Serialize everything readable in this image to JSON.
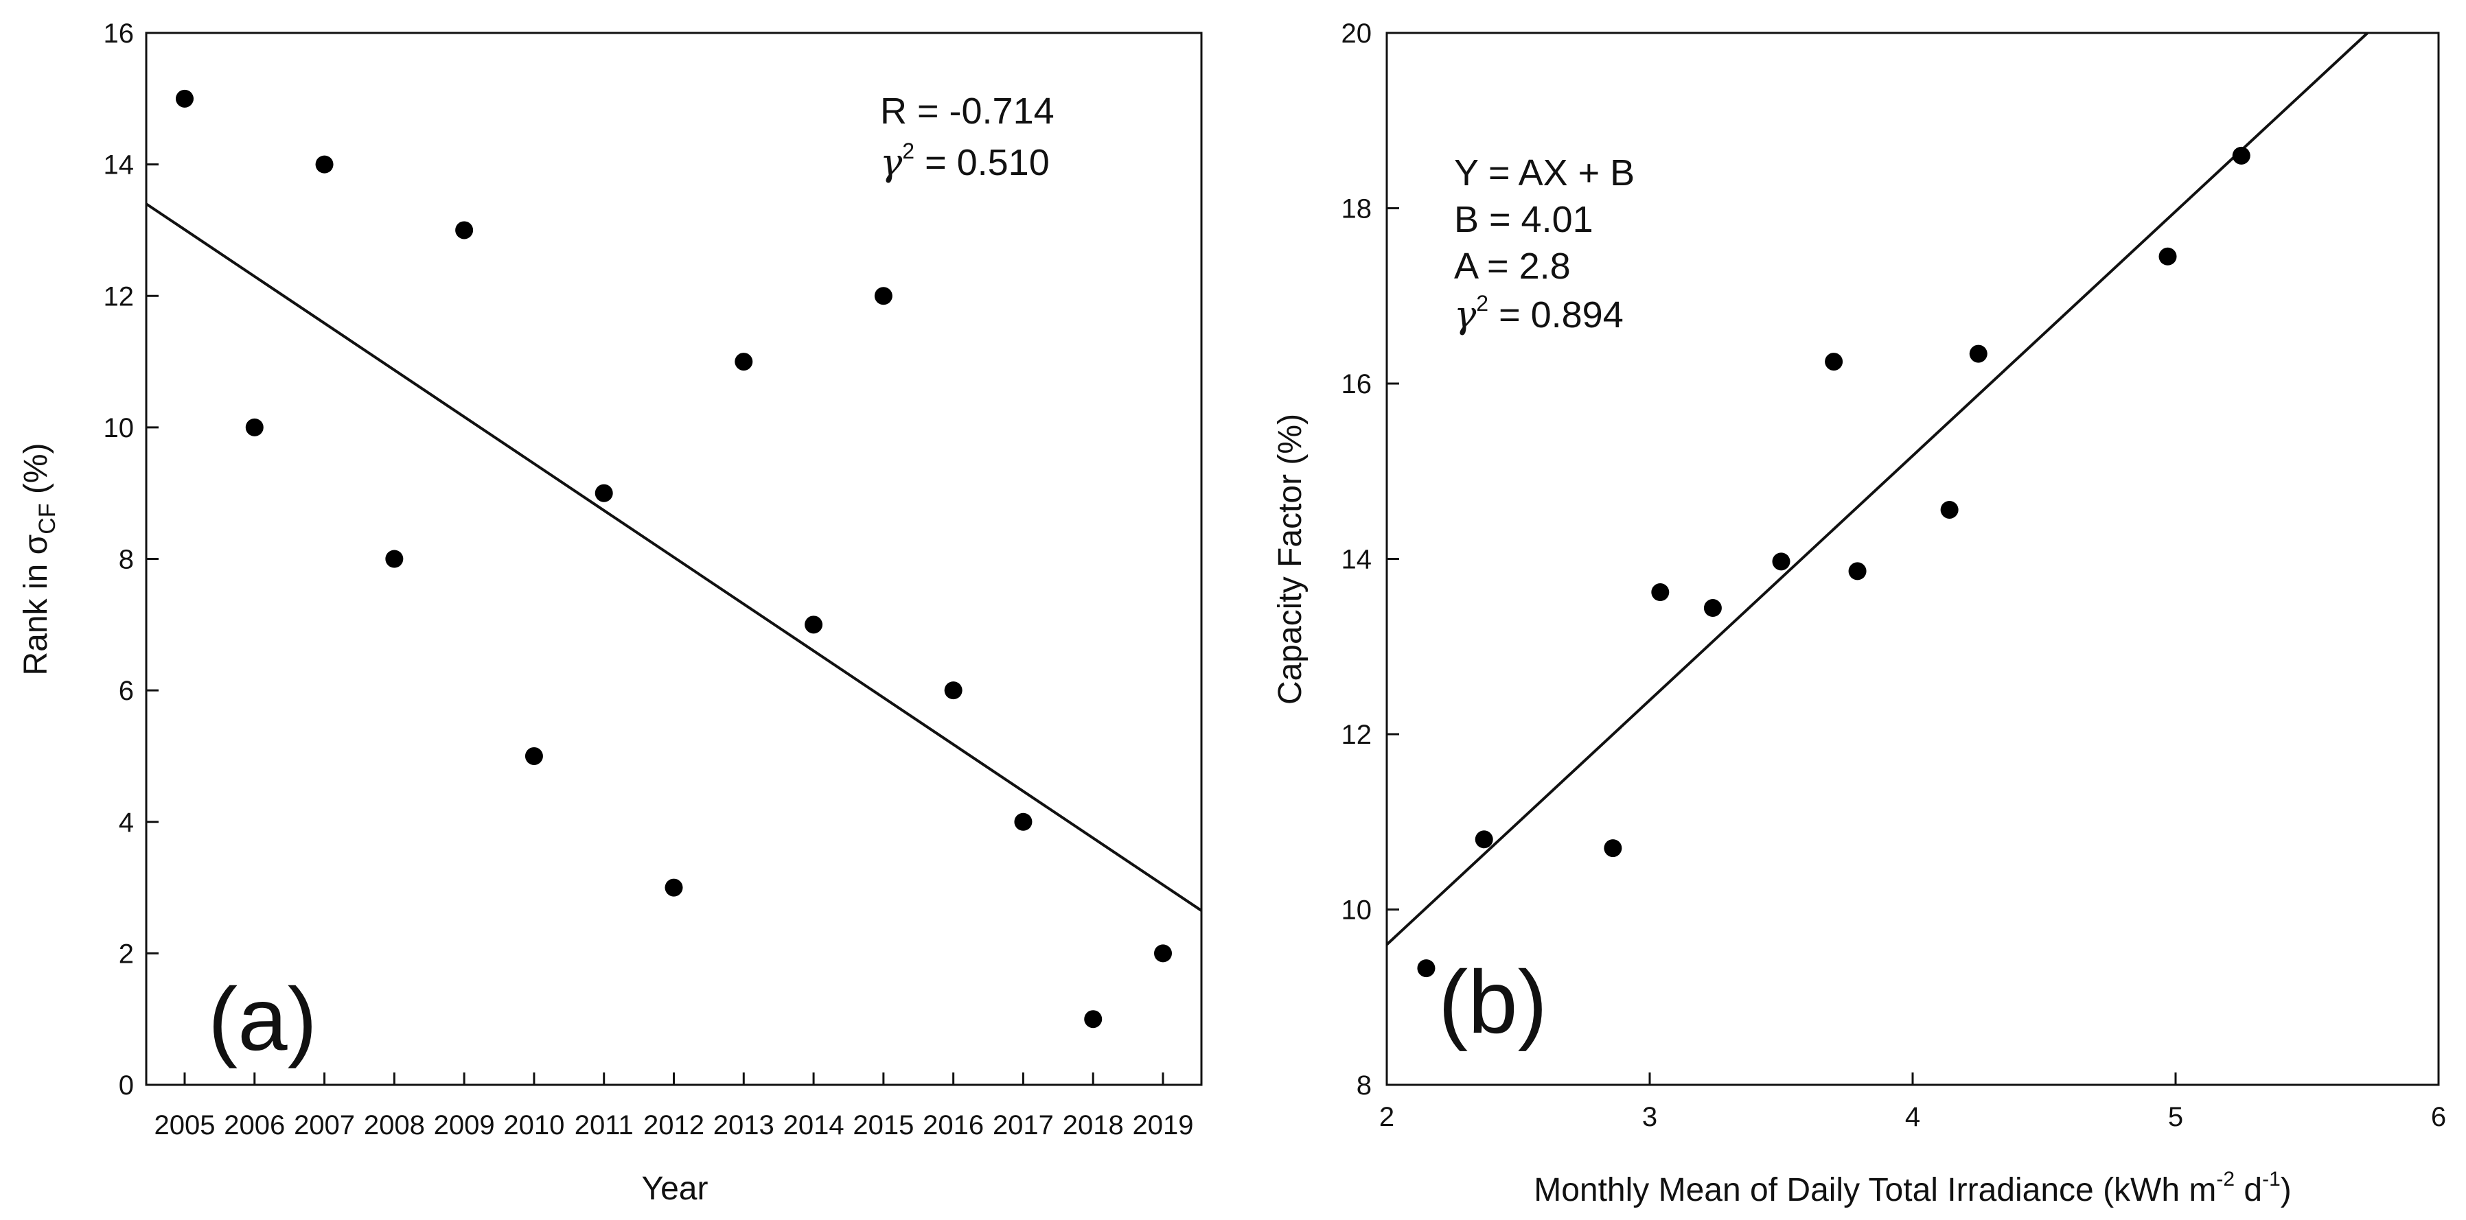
{
  "chart_data": [
    {
      "type": "scatter",
      "panel_label": "(a)",
      "title": "",
      "xlabel": "Year",
      "ylabel_prefix": "Rank in σ",
      "ylabel_sub": "CF",
      "ylabel_suffix": " (%)",
      "categories": [
        "2005",
        "2006",
        "2007",
        "2008",
        "2009",
        "2010",
        "2011",
        "2012",
        "2013",
        "2014",
        "2015",
        "2016",
        "2017",
        "2018",
        "2019"
      ],
      "xlim": [
        2004.45,
        2019.55
      ],
      "ylim": [
        0,
        16
      ],
      "yticks": [
        0,
        2,
        4,
        6,
        8,
        10,
        12,
        14,
        16
      ],
      "series": [
        {
          "name": "Rank",
          "points": [
            {
              "x": 2005,
              "y": 15
            },
            {
              "x": 2006,
              "y": 10
            },
            {
              "x": 2007,
              "y": 14
            },
            {
              "x": 2008,
              "y": 8
            },
            {
              "x": 2009,
              "y": 13
            },
            {
              "x": 2010,
              "y": 5
            },
            {
              "x": 2011,
              "y": 9
            },
            {
              "x": 2012,
              "y": 3
            },
            {
              "x": 2013,
              "y": 11
            },
            {
              "x": 2014,
              "y": 7
            },
            {
              "x": 2015,
              "y": 12
            },
            {
              "x": 2016,
              "y": 6
            },
            {
              "x": 2017,
              "y": 4
            },
            {
              "x": 2018,
              "y": 1
            },
            {
              "x": 2019,
              "y": 2
            }
          ]
        }
      ],
      "fit_line": {
        "x1": 2004.45,
        "y1": 13.4,
        "x2": 2019.55,
        "y2": 2.65
      },
      "annotations": [
        {
          "key": "r",
          "text": "R = -0.714"
        },
        {
          "key": "g2",
          "symbol": "γ",
          "sup": "2",
          "text": " = 0.510"
        }
      ]
    },
    {
      "type": "scatter",
      "panel_label": "(b)",
      "title": "",
      "xlabel_parts": [
        "Monthly Mean of Daily Total Irradiance (kWh m",
        "-2",
        " d",
        "-1",
        ")"
      ],
      "ylabel": "Capacity Factor (%)",
      "xlim": [
        2,
        6
      ],
      "ylim": [
        8,
        20
      ],
      "xticks": [
        2,
        3,
        4,
        5,
        6
      ],
      "yticks": [
        8,
        10,
        12,
        14,
        16,
        18,
        20
      ],
      "series": [
        {
          "name": "Capacity Factor",
          "points": [
            {
              "x": 2.15,
              "y": 9.33
            },
            {
              "x": 2.37,
              "y": 10.8
            },
            {
              "x": 2.86,
              "y": 10.7
            },
            {
              "x": 3.04,
              "y": 13.62
            },
            {
              "x": 3.24,
              "y": 13.44
            },
            {
              "x": 3.5,
              "y": 13.97
            },
            {
              "x": 3.7,
              "y": 16.25
            },
            {
              "x": 3.79,
              "y": 13.86
            },
            {
              "x": 4.14,
              "y": 14.56
            },
            {
              "x": 4.25,
              "y": 16.34
            },
            {
              "x": 4.97,
              "y": 17.45
            },
            {
              "x": 5.25,
              "y": 18.6
            }
          ]
        }
      ],
      "fit_line": {
        "x1": 2,
        "y1": 9.6,
        "x2": 5.73,
        "y2": 20
      },
      "annotations": [
        {
          "key": "eq",
          "text": "Y = AX + B"
        },
        {
          "key": "b",
          "text": "B = 4.01"
        },
        {
          "key": "a",
          "text": "A = 2.8"
        },
        {
          "key": "g2",
          "symbol": "γ",
          "sup": "2",
          "text": " = 0.894"
        }
      ]
    }
  ]
}
